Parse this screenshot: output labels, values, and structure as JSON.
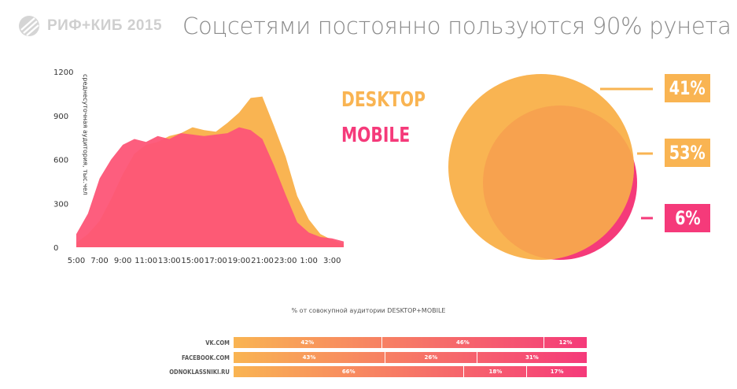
{
  "header": {
    "logo_text": "РИФ+КИБ 2015",
    "title": "Соцсетями постоянно пользуются 90% рунета"
  },
  "colors": {
    "desktop": "#f9b452",
    "mobile": "#f53a7a",
    "mobile_area": "#fd5577",
    "overlap": "#f7a24f",
    "grey": "#8a8a8a"
  },
  "legend": {
    "desktop": "DESKTOP",
    "mobile": "MOBILE"
  },
  "venn": {
    "labels": [
      "41%",
      "53%",
      "6%"
    ]
  },
  "bars": {
    "title": "% от совокупной аудитории DESKTOP+MOBILE",
    "rows": [
      {
        "label": "VK.COM",
        "segments": [
          42,
          46,
          12
        ],
        "labels": [
          "42%",
          "46%",
          "12%"
        ]
      },
      {
        "label": "FACEBOOK.COM",
        "segments": [
          43,
          26,
          31
        ],
        "labels": [
          "43%",
          "26%",
          "31%"
        ]
      },
      {
        "label": "ODNOKLASSNIKI.RU",
        "segments": [
          66,
          18,
          17
        ],
        "labels": [
          "66%",
          "18%",
          "17%"
        ]
      }
    ]
  },
  "chart_data": {
    "type": "area",
    "ylabel": "среднесуточная аудитория, тыс.чел",
    "ylim": [
      0,
      1200
    ],
    "yticks": [
      "0",
      "300",
      "600",
      "900",
      "1200"
    ],
    "x": [
      "5:00",
      "6:00",
      "7:00",
      "8:00",
      "9:00",
      "10:00",
      "11:00",
      "12:00",
      "13:00",
      "14:00",
      "15:00",
      "16:00",
      "17:00",
      "18:00",
      "19:00",
      "20:00",
      "21:00",
      "22:00",
      "23:00",
      "0:00",
      "1:00",
      "2:00",
      "3:00",
      "4:00"
    ],
    "xticks": [
      "5:00",
      "7:00",
      "9:00",
      "11:00",
      "13:00",
      "15:00",
      "17:00",
      "19:00",
      "21:00",
      "23:00",
      "1:00",
      "3:00"
    ],
    "series": [
      {
        "name": "DESKTOP",
        "values": [
          30,
          90,
          180,
          330,
          500,
          640,
          700,
          720,
          760,
          780,
          820,
          800,
          790,
          850,
          920,
          1020,
          1030,
          830,
          620,
          350,
          190,
          90,
          50,
          20
        ]
      },
      {
        "name": "MOBILE",
        "values": [
          90,
          230,
          470,
          600,
          700,
          740,
          720,
          760,
          740,
          780,
          770,
          760,
          770,
          780,
          820,
          800,
          740,
          560,
          360,
          170,
          100,
          70,
          60,
          40
        ]
      }
    ]
  }
}
